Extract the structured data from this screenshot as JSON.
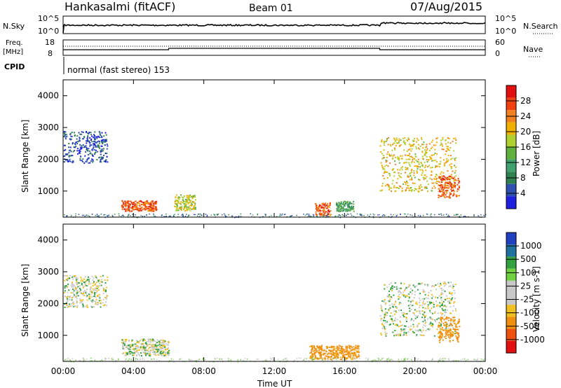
{
  "header": {
    "station": "Hankasalmi (fitACF)",
    "beam": "Beam 01",
    "date": "07/Aug/2015"
  },
  "noise_panel": {
    "left_label": "N.Sky",
    "right_label": "N.Search",
    "left_ticks": [
      "10^5",
      "10^0"
    ],
    "right_ticks": [
      "10^5",
      "10^0"
    ]
  },
  "freq_panel": {
    "left_label_1": "Freq.",
    "left_label_2": "[MHz]",
    "left_ticks": [
      "18",
      "8"
    ],
    "right_label": "Nave",
    "right_ticks": [
      "60",
      "0"
    ]
  },
  "cpid": {
    "label": "CPID",
    "text": "normal (fast stereo) 153"
  },
  "colorbar_power": {
    "label": "Power [dB]",
    "ticks": [
      "28",
      "24",
      "20",
      "16",
      "12",
      "8",
      "4"
    ],
    "colors": [
      "#e01010",
      "#f04010",
      "#f08020",
      "#f0b000",
      "#b0d030",
      "#60b040",
      "#40a070",
      "#308050",
      "#3050b0",
      "#2020e0"
    ]
  },
  "colorbar_velocity": {
    "label": "Velocity [m s-1]",
    "ticks": [
      "1000",
      "500",
      "100",
      "25",
      "-25",
      "-100",
      "-500",
      "-1000"
    ],
    "colors": [
      "#2040c0",
      "#2070a0",
      "#30a040",
      "#70d040",
      "#c8c8c8",
      "#c8c8c8",
      "#f0c020",
      "#f09010",
      "#f05010",
      "#e01010"
    ]
  },
  "chart_data": [
    {
      "type": "heatmap",
      "title": "",
      "ylabel": "Slant Range [km]",
      "xlabel": "",
      "ylim": [
        180,
        4500
      ],
      "xlim": [
        "00:00",
        "24:00"
      ],
      "y_ticks": [
        "1000",
        "2000",
        "3000",
        "4000"
      ],
      "x_ticks": [
        "00:00",
        "04:00",
        "08:00",
        "12:00",
        "16:00",
        "20:00",
        "00:00"
      ],
      "colorbar": "Power [dB]",
      "echo_regions": [
        {
          "t_start": 0.0,
          "t_end": 2.5,
          "range_km": [
            1900,
            2900
          ],
          "power_db": 6
        },
        {
          "t_start": 3.3,
          "t_end": 5.3,
          "range_km": [
            380,
            720
          ],
          "power_db": 26
        },
        {
          "t_start": 6.3,
          "t_end": 7.5,
          "range_km": [
            400,
            900
          ],
          "power_db": 18
        },
        {
          "t_start": 14.3,
          "t_end": 15.2,
          "range_km": [
            250,
            650
          ],
          "power_db": 26
        },
        {
          "t_start": 15.5,
          "t_end": 16.5,
          "range_km": [
            380,
            700
          ],
          "power_db": 12
        },
        {
          "t_start": 18.0,
          "t_end": 22.3,
          "range_km": [
            1000,
            2700
          ],
          "power_db": 20
        },
        {
          "t_start": 21.3,
          "t_end": 22.5,
          "range_km": [
            800,
            1500
          ],
          "power_db": 26
        }
      ]
    },
    {
      "type": "heatmap",
      "title": "",
      "ylabel": "Slant Range [km]",
      "xlabel": "Time UT",
      "ylim": [
        180,
        4500
      ],
      "xlim": [
        "00:00",
        "24:00"
      ],
      "y_ticks": [
        "1000",
        "2000",
        "3000",
        "4000"
      ],
      "x_ticks": [
        "00:00",
        "04:00",
        "08:00",
        "12:00",
        "16:00",
        "20:00",
        "00:00"
      ],
      "colorbar": "Velocity [m s-1]",
      "echo_regions": [
        {
          "t_start": 0.0,
          "t_end": 2.5,
          "range_km": [
            1900,
            2900
          ],
          "velocity": 0
        },
        {
          "t_start": 3.3,
          "t_end": 6.0,
          "range_km": [
            380,
            900
          ],
          "velocity": 0
        },
        {
          "t_start": 14.0,
          "t_end": 16.8,
          "range_km": [
            250,
            700
          ],
          "velocity": -150
        },
        {
          "t_start": 18.0,
          "t_end": 22.3,
          "range_km": [
            1000,
            2700
          ],
          "velocity": 0
        },
        {
          "t_start": 21.3,
          "t_end": 22.5,
          "range_km": [
            800,
            1600
          ],
          "velocity": -300
        }
      ]
    }
  ]
}
